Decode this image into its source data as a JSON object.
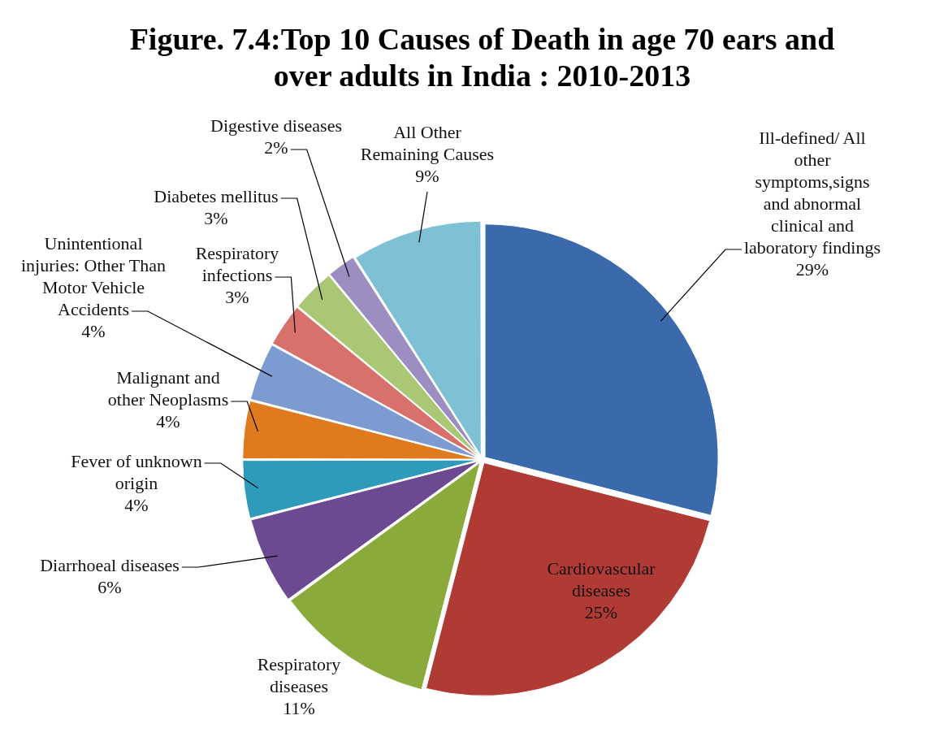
{
  "chart_data": {
    "type": "pie",
    "title": [
      "Figure. 7.4:Top 10 Causes of Death in age 70 ears and",
      "over adults in India : 2010-2013"
    ],
    "categories": [
      "Ill-defined/ All other symptoms,signs and abnormal clinical and laboratory findings",
      "Cardiovascular diseases",
      "Respiratory diseases",
      "Diarrhoeal diseases",
      "Fever of unknown origin",
      "Malignant and other Neoplasms",
      "Unintentional injuries: Other Than Motor Vehicle Accidents",
      "Respiratory infections",
      "Diabetes mellitus",
      "Digestive diseases",
      "All Other Remaining Causes"
    ],
    "values": [
      29,
      25,
      11,
      6,
      4,
      4,
      4,
      3,
      3,
      2,
      9
    ],
    "value_labels": [
      "29%",
      "25%",
      "11%",
      "6%",
      "4%",
      "4%",
      "4%",
      "3%",
      "3%",
      "2%",
      "9%"
    ],
    "colors": [
      "#3a6aac",
      "#b03a34",
      "#8aaa3c",
      "#6c4a92",
      "#2e9bbb",
      "#e07a1e",
      "#7c9bd0",
      "#d8706c",
      "#a9c775",
      "#9c8ec0",
      "#7ec0d4"
    ],
    "legend": false
  }
}
